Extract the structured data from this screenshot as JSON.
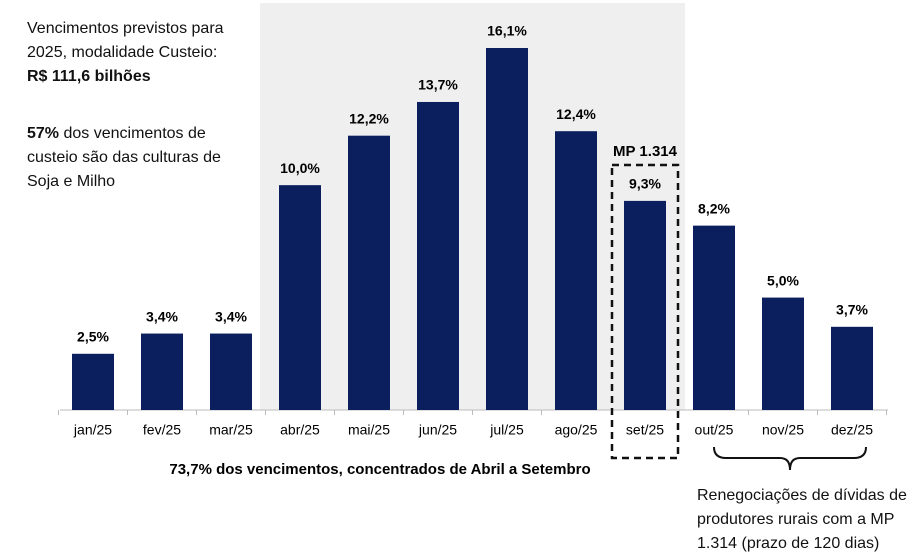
{
  "chart_data": {
    "type": "bar",
    "title": "Vencimentos previstos para 2025, modalidade Custeio:",
    "title_value": "R$ 111,6 bilhões",
    "annotation_bold": "57%",
    "annotation": "dos vencimentos de custeio são das culturas de Soja e Milho",
    "highlight_label": "MP 1.314",
    "footnote": "73,7% dos vencimentos, concentrados de Abril a Setembro",
    "brace_note": "Renegociações de dívidas de produtores rurais com a MP 1.314 (prazo de 120 dias)",
    "categories": [
      "jan/25",
      "fev/25",
      "mar/25",
      "abr/25",
      "mai/25",
      "jun/25",
      "jul/25",
      "ago/25",
      "set/25",
      "out/25",
      "nov/25",
      "dez/25"
    ],
    "values": [
      2.5,
      3.4,
      3.4,
      10.0,
      12.2,
      13.7,
      16.1,
      12.4,
      9.3,
      8.2,
      5.0,
      3.7
    ],
    "value_labels": [
      "2,5%",
      "3,4%",
      "3,4%",
      "10,0%",
      "12,2%",
      "13,7%",
      "16,1%",
      "12,4%",
      "9,3%",
      "8,2%",
      "5,0%",
      "3,7%"
    ],
    "color": "#0b1f5e"
  }
}
